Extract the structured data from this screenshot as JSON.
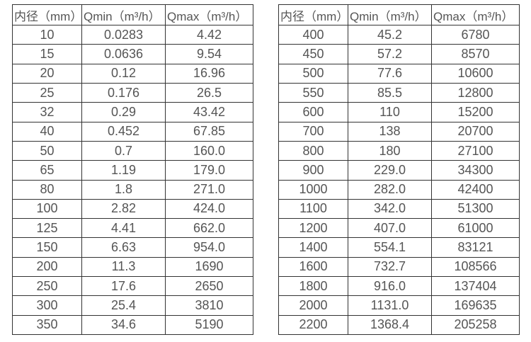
{
  "page": {
    "background_color": "#ffffff",
    "text_color": "#555555",
    "border_color": "#333333"
  },
  "tables": [
    {
      "name": "left-table",
      "headers": [
        "内径（mm）",
        "Qmin（m³/h）",
        "Qmax（m³/h）"
      ],
      "rows": [
        [
          "10",
          "0.0283",
          "4.42"
        ],
        [
          "15",
          "0.0636",
          "9.54"
        ],
        [
          "20",
          "0.12",
          "16.96"
        ],
        [
          "25",
          "0.176",
          "26.5"
        ],
        [
          "32",
          "0.29",
          "43.42"
        ],
        [
          "40",
          "0.452",
          "67.85"
        ],
        [
          "50",
          "0.7",
          "160.0"
        ],
        [
          "65",
          "1.19",
          "179.0"
        ],
        [
          "80",
          "1.8",
          "271.0"
        ],
        [
          "100",
          "2.82",
          "424.0"
        ],
        [
          "125",
          "4.41",
          "662.0"
        ],
        [
          "150",
          "6.63",
          "954.0"
        ],
        [
          "200",
          "11.3",
          "1690"
        ],
        [
          "250",
          "17.6",
          "2650"
        ],
        [
          "300",
          "25.4",
          "3810"
        ],
        [
          "350",
          "34.6",
          "5190"
        ]
      ]
    },
    {
      "name": "right-table",
      "headers": [
        "内径（mm）",
        "Qmin（m³/h）",
        "Qmax（m³/h）"
      ],
      "rows": [
        [
          "400",
          "45.2",
          "6780"
        ],
        [
          "450",
          "57.2",
          "8570"
        ],
        [
          "500",
          "77.6",
          "10600"
        ],
        [
          "550",
          "85.5",
          "12800"
        ],
        [
          "600",
          "110",
          "15200"
        ],
        [
          "700",
          "138",
          "20700"
        ],
        [
          "800",
          "180",
          "27100"
        ],
        [
          "900",
          "229.0",
          "34300"
        ],
        [
          "1000",
          "282.0",
          "42400"
        ],
        [
          "1100",
          "342.0",
          "51300"
        ],
        [
          "1200",
          "407.0",
          "61000"
        ],
        [
          "1400",
          "554.1",
          "83121"
        ],
        [
          "1600",
          "732.7",
          "108566"
        ],
        [
          "1800",
          "916.0",
          "137404"
        ],
        [
          "2000",
          "1131.0",
          "169635"
        ],
        [
          "2200",
          "1368.4",
          "205258"
        ]
      ]
    }
  ]
}
